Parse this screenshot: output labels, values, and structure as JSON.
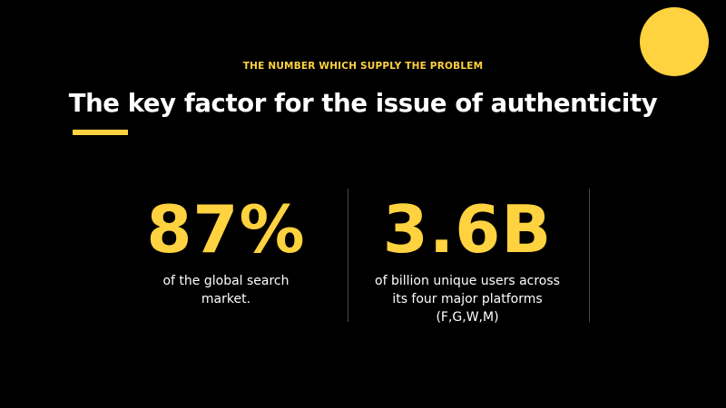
{
  "slide": {
    "eyebrow": "THE NUMBER WHICH SUPPLY THE PROBLEM",
    "title": "The key factor for the issue of authenticity",
    "accent_color": "#ffd23f",
    "background_color": "#000000"
  },
  "stats": [
    {
      "value": "87%",
      "description_lines": [
        "of the global search",
        "market."
      ]
    },
    {
      "value": "3.6B",
      "description_lines": [
        "of billion unique users across",
        "its four major platforms",
        "(F,G,W,M)"
      ]
    }
  ]
}
